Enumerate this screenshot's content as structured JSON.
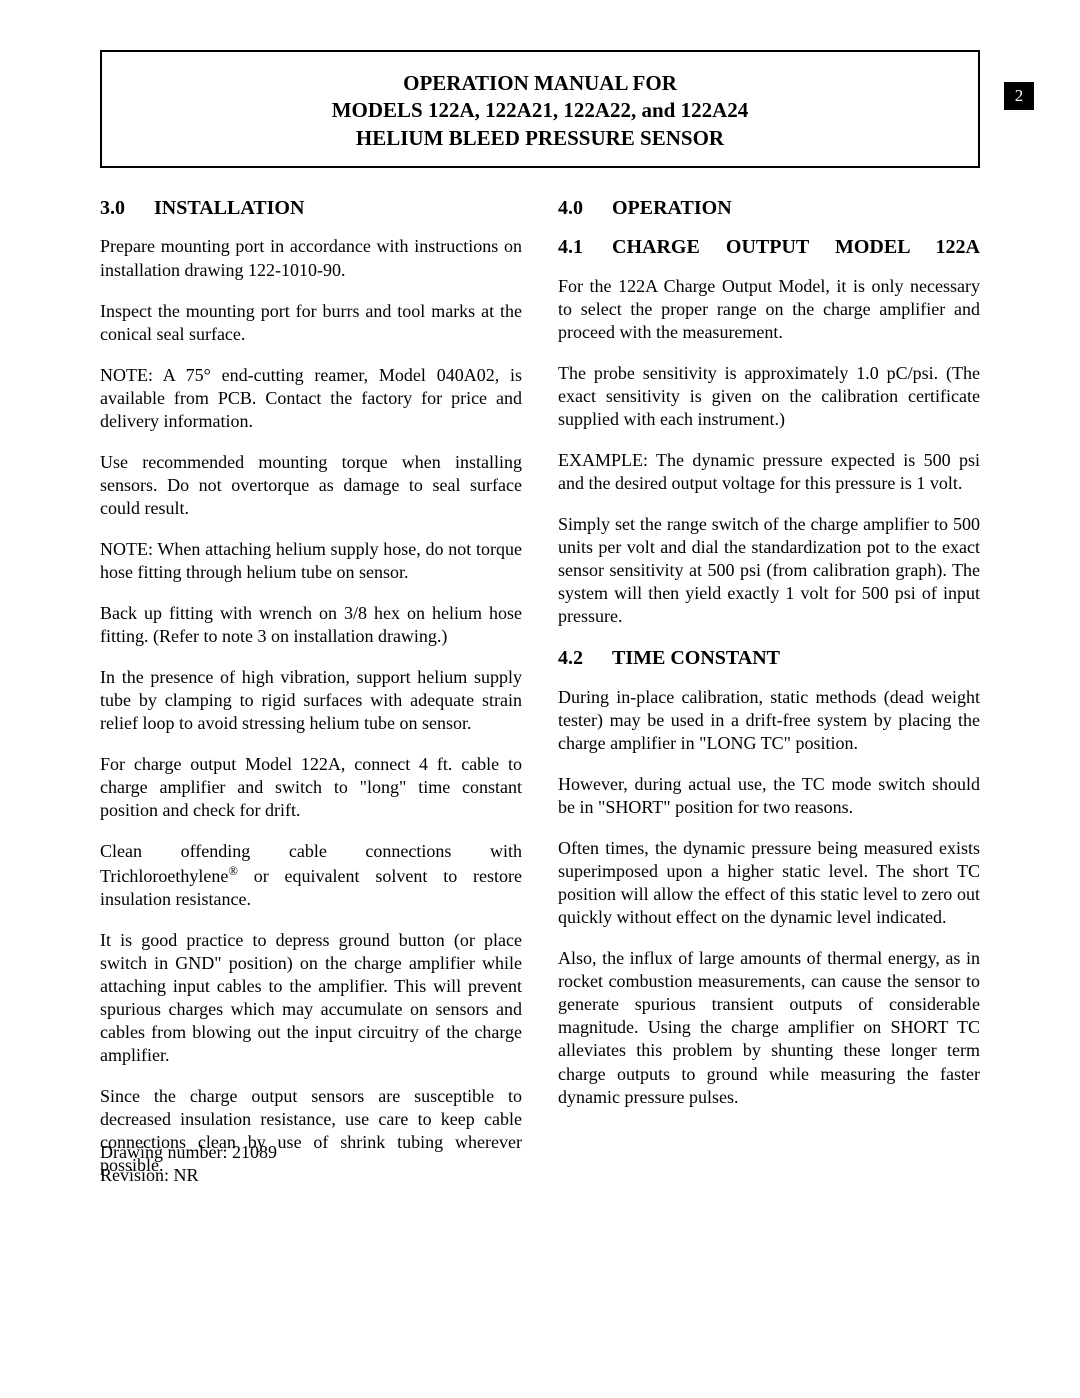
{
  "header": {
    "line1": "OPERATION MANUAL FOR",
    "line2": "MODELS 122A, 122A21, 122A22, and 122A24",
    "line3": "HELIUM BLEED PRESSURE SENSOR"
  },
  "page_number": "2",
  "left_column": {
    "s3": {
      "num": "3.0",
      "title": "INSTALLATION",
      "p1": "Prepare mounting port in accordance with instructions on installation drawing 122-1010-90.",
      "p2": "Inspect the mounting port for burrs and tool marks at the conical seal surface.",
      "p3": "NOTE:  A 75° end-cutting reamer, Model 040A02, is available from PCB.  Contact the factory for price and delivery information.",
      "p4": "Use recommended mounting torque when installing sensors.  Do not overtorque as damage to seal surface could result.",
      "p5": "NOTE:    When attaching helium supply hose, do not torque hose fitting through helium tube on sensor.",
      "p6": "Back up fitting with wrench on 3/8 hex on helium hose fitting. (Refer to note 3 on installation drawing.)",
      "p7": "In the presence of high vibration, support helium supply tube by clamping to rigid surfaces with adequate strain relief loop to avoid stressing helium tube on sensor.",
      "p8": "For charge output Model 122A, connect 4 ft. cable to charge amplifier and switch to \"long\" time constant position and check for drift.",
      "p9a": "Clean offending cable connections with Trichloroethylene",
      "p9b": " or equivalent solvent to restore insulation resistance.",
      "p10": "It is good practice to depress ground button (or place switch in GND\" position) on the charge amplifier while attaching input cables to the amplifier.  This will prevent spurious charges which may accumulate on sensors and cables from blowing out the input circuitry of the charge amplifier.",
      "p11": "Since the charge output sensors are susceptible to decreased insulation resistance, use care to keep cable connections clean by use of shrink tubing wherever possible."
    }
  },
  "right_column": {
    "s4": {
      "num": "4.0",
      "title": "OPERATION"
    },
    "s41": {
      "num": "4.1",
      "title": "CHARGE OUTPUT MODEL 122A",
      "p1": "For the 122A Charge Output Model, it is only necessary to select the proper range on the charge amplifier and proceed with the measurement.",
      "p2": "The probe sensitivity is approximately 1.0 pC/psi. (The exact sensitivity is given on the calibration certificate supplied with each instrument.)",
      "p3": "EXAMPLE:      The dynamic pressure expected is 500 psi and the desired output voltage for this pressure is 1 volt.",
      "p4": "Simply set the range switch of the charge amplifier to 500 units per volt and dial the standardization pot to the exact sensor sensitivity at 500 psi (from calibration graph).  The system will then yield exactly 1 volt for 500 psi of input pressure."
    },
    "s42": {
      "num": "4.2",
      "title": "TIME CONSTANT",
      "p1": "During in-place calibration, static methods (dead weight tester) may be used in a drift-free system by placing the charge amplifier in \"LONG TC\" position.",
      "p2": "However, during actual use, the TC mode switch should be in \"SHORT\" position for two reasons.",
      "p3": "Often times, the dynamic pressure being measured exists superimposed upon a higher static level.  The short TC position will allow the effect of this static level to zero out quickly without effect on the dynamic level indicated.",
      "p4": "Also, the influx of large amounts of thermal energy, as in rocket combustion measurements, can cause the sensor to generate spurious transient outputs of considerable magnitude.  Using the charge amplifier on SHORT TC alleviates this problem by shunting these longer term charge outputs to ground while measuring the faster dynamic pressure pulses."
    }
  },
  "footer": {
    "drawing": "Drawing number: 21089",
    "revision": "Revision: NR"
  },
  "registered_symbol": "®"
}
